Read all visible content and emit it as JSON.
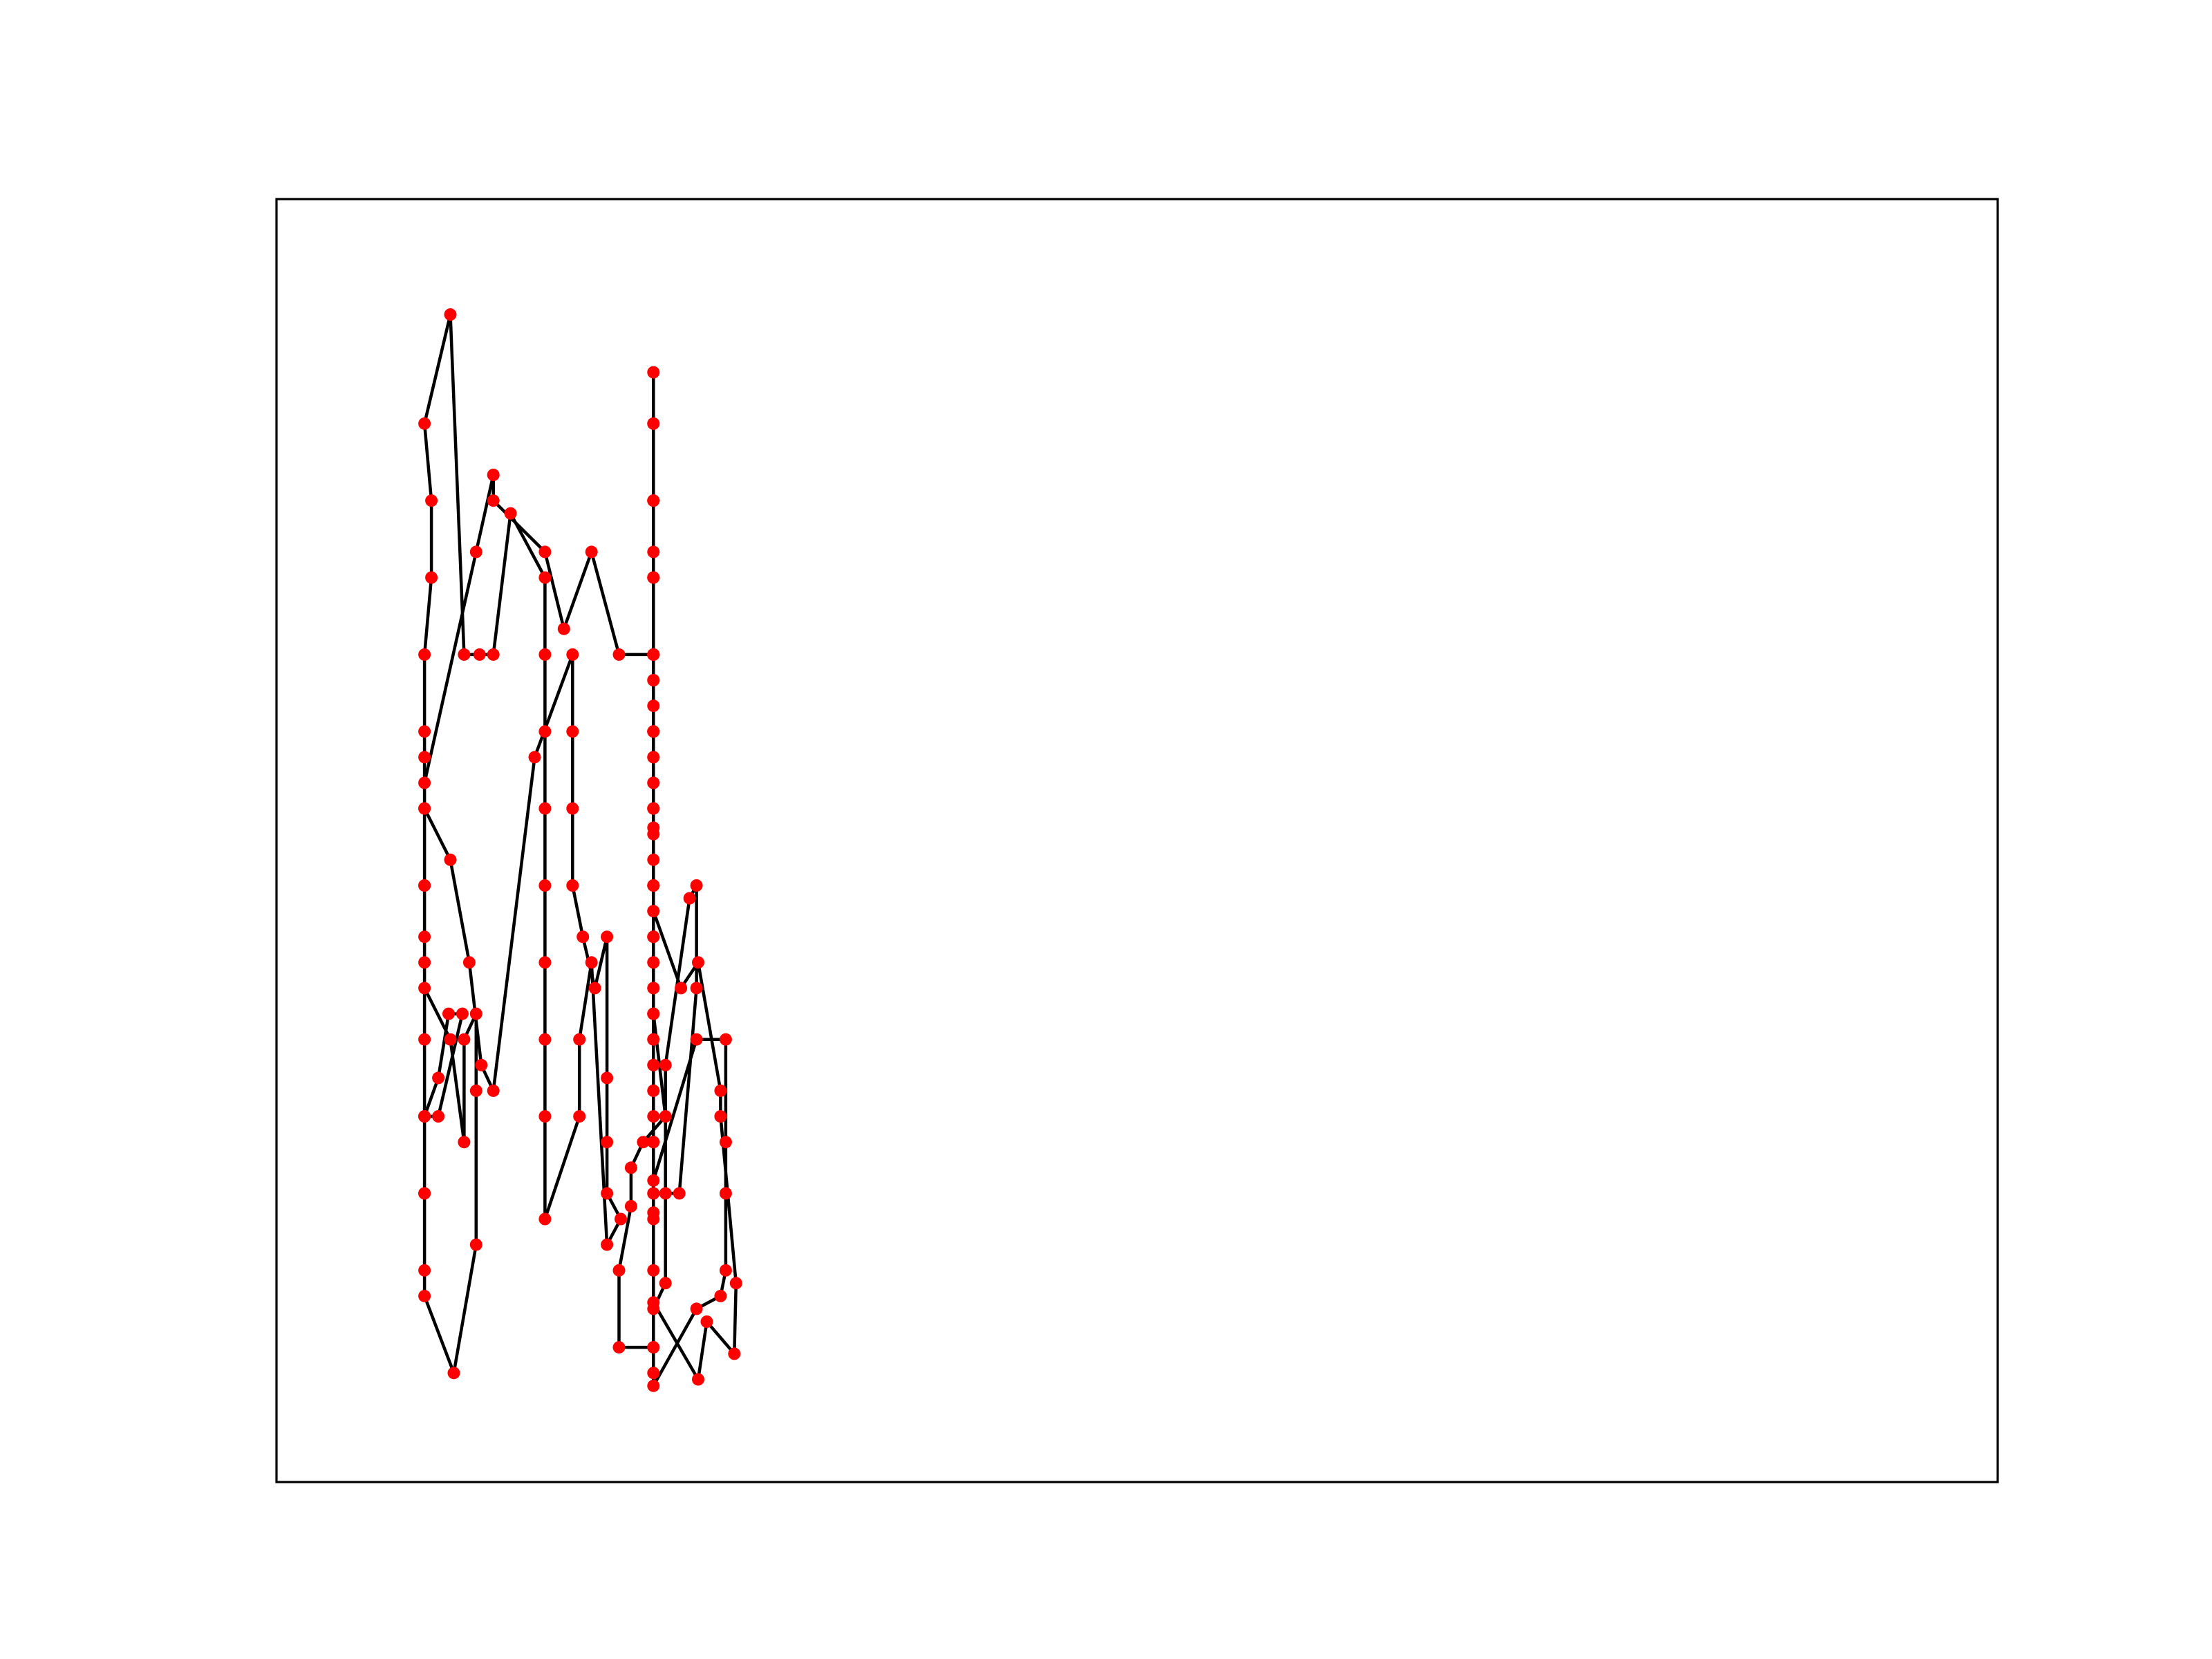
{
  "chart_data": {
    "type": "line",
    "title": "",
    "xlabel": "",
    "ylabel": "",
    "xlim": [
      0,
      1
    ],
    "ylim": [
      0,
      1
    ],
    "grid": false,
    "ticks": false,
    "legend": null,
    "line_color": "#000000",
    "marker_color": "#ff0000",
    "series": [
      {
        "points": [
          [
            0.086,
            0.165
          ],
          [
            0.086,
            0.225
          ],
          [
            0.086,
            0.285
          ],
          [
            0.086,
            0.345
          ],
          [
            0.086,
            0.405
          ],
          [
            0.086,
            0.465
          ],
          [
            0.086,
            0.525
          ],
          [
            0.086,
            0.585
          ],
          [
            0.086,
            0.645
          ],
          [
            0.09,
            0.705
          ],
          [
            0.09,
            0.765
          ],
          [
            0.086,
            0.825
          ],
          [
            0.101,
            0.91
          ],
          [
            0.109,
            0.645
          ],
          [
            0.118,
            0.645
          ],
          [
            0.126,
            0.645
          ],
          [
            0.136,
            0.755
          ],
          [
            0.156,
            0.705
          ],
          [
            0.156,
            0.645
          ],
          [
            0.156,
            0.585
          ],
          [
            0.156,
            0.525
          ],
          [
            0.156,
            0.465
          ],
          [
            0.156,
            0.405
          ],
          [
            0.156,
            0.345
          ],
          [
            0.156,
            0.285
          ],
          [
            0.156,
            0.205
          ],
          [
            0.176,
            0.285
          ],
          [
            0.176,
            0.345
          ],
          [
            0.183,
            0.405
          ],
          [
            0.192,
            0.185
          ],
          [
            0.2,
            0.205
          ],
          [
            0.192,
            0.225
          ],
          [
            0.192,
            0.265
          ],
          [
            0.192,
            0.315
          ],
          [
            0.192,
            0.425
          ],
          [
            0.185,
            0.385
          ],
          [
            0.178,
            0.425
          ],
          [
            0.172,
            0.465
          ],
          [
            0.172,
            0.525
          ],
          [
            0.172,
            0.585
          ],
          [
            0.172,
            0.645
          ],
          [
            0.15,
            0.565
          ],
          [
            0.126,
            0.305
          ],
          [
            0.119,
            0.325
          ],
          [
            0.112,
            0.405
          ],
          [
            0.101,
            0.485
          ],
          [
            0.086,
            0.525
          ],
          [
            0.086,
            0.565
          ],
          [
            0.086,
            0.285
          ],
          [
            0.094,
            0.315
          ],
          [
            0.1,
            0.365
          ],
          [
            0.108,
            0.365
          ],
          [
            0.094,
            0.285
          ],
          [
            0.086,
            0.285
          ],
          [
            0.086,
            0.225
          ],
          [
            0.086,
            0.145
          ],
          [
            0.103,
            0.085
          ],
          [
            0.116,
            0.185
          ],
          [
            0.116,
            0.305
          ],
          [
            0.116,
            0.365
          ],
          [
            0.109,
            0.345
          ],
          [
            0.109,
            0.265
          ],
          [
            0.101,
            0.345
          ],
          [
            0.086,
            0.385
          ],
          [
            0.086,
            0.425
          ],
          [
            0.086,
            0.465
          ],
          [
            0.086,
            0.545
          ],
          [
            0.116,
            0.725
          ],
          [
            0.126,
            0.785
          ],
          [
            0.126,
            0.765
          ],
          [
            0.156,
            0.725
          ],
          [
            0.167,
            0.665
          ],
          [
            0.183,
            0.725
          ],
          [
            0.199,
            0.645
          ],
          [
            0.219,
            0.645
          ],
          [
            0.219,
            0.585
          ],
          [
            0.219,
            0.565
          ],
          [
            0.219,
            0.525
          ],
          [
            0.219,
            0.465
          ],
          [
            0.219,
            0.425
          ],
          [
            0.219,
            0.385
          ],
          [
            0.219,
            0.345
          ],
          [
            0.219,
            0.305
          ],
          [
            0.219,
            0.265
          ],
          [
            0.219,
            0.205
          ],
          [
            0.219,
            0.225
          ],
          [
            0.234,
            0.225
          ],
          [
            0.244,
            0.385
          ],
          [
            0.244,
            0.465
          ],
          [
            0.24,
            0.455
          ],
          [
            0.226,
            0.325
          ],
          [
            0.226,
            0.225
          ],
          [
            0.226,
            0.155
          ],
          [
            0.219,
            0.135
          ],
          [
            0.219,
            0.085
          ],
          [
            0.219,
            0.105
          ],
          [
            0.219,
            0.165
          ],
          [
            0.219,
            0.235
          ],
          [
            0.244,
            0.345
          ],
          [
            0.261,
            0.345
          ],
          [
            0.261,
            0.265
          ],
          [
            0.261,
            0.225
          ],
          [
            0.261,
            0.165
          ],
          [
            0.258,
            0.145
          ],
          [
            0.244,
            0.135
          ],
          [
            0.219,
            0.075
          ],
          [
            0.219,
            0.105
          ],
          [
            0.199,
            0.105
          ],
          [
            0.199,
            0.165
          ],
          [
            0.206,
            0.215
          ],
          [
            0.206,
            0.245
          ],
          [
            0.213,
            0.265
          ],
          [
            0.226,
            0.285
          ],
          [
            0.219,
            0.365
          ],
          [
            0.219,
            0.425
          ],
          [
            0.219,
            0.465
          ],
          [
            0.219,
            0.525
          ],
          [
            0.219,
            0.585
          ],
          [
            0.219,
            0.625
          ],
          [
            0.219,
            0.645
          ],
          [
            0.219,
            0.705
          ],
          [
            0.219,
            0.765
          ],
          [
            0.219,
            0.825
          ],
          [
            0.219,
            0.645
          ],
          [
            0.219,
            0.565
          ],
          [
            0.219,
            0.505
          ],
          [
            0.219,
            0.445
          ],
          [
            0.235,
            0.385
          ],
          [
            0.245,
            0.405
          ],
          [
            0.258,
            0.305
          ],
          [
            0.258,
            0.285
          ],
          [
            0.267,
            0.155
          ],
          [
            0.266,
            0.1
          ],
          [
            0.25,
            0.125
          ],
          [
            0.245,
            0.08
          ],
          [
            0.219,
            0.14
          ],
          [
            0.219,
            0.21
          ],
          [
            0.219,
            0.265
          ],
          [
            0.219,
            0.305
          ],
          [
            0.219,
            0.325
          ],
          [
            0.219,
            0.365
          ],
          [
            0.219,
            0.405
          ],
          [
            0.219,
            0.465
          ],
          [
            0.219,
            0.51
          ],
          [
            0.219,
            0.545
          ],
          [
            0.219,
            0.585
          ],
          [
            0.219,
            0.625
          ],
          [
            0.219,
            0.645
          ],
          [
            0.219,
            0.705
          ],
          [
            0.219,
            0.765
          ],
          [
            0.219,
            0.825
          ],
          [
            0.219,
            0.865
          ],
          [
            0.219,
            0.765
          ],
          [
            0.219,
            0.725
          ],
          [
            0.219,
            0.705
          ],
          [
            0.219,
            0.645
          ],
          [
            0.219,
            0.605
          ],
          [
            0.219,
            0.585
          ],
          [
            0.219,
            0.545
          ],
          [
            0.219,
            0.525
          ],
          [
            0.219,
            0.485
          ],
          [
            0.219,
            0.445
          ],
          [
            0.219,
            0.425
          ],
          [
            0.219,
            0.405
          ],
          [
            0.219,
            0.385
          ],
          [
            0.219,
            0.365
          ],
          [
            0.219,
            0.345
          ],
          [
            0.219,
            0.325
          ],
          [
            0.219,
            0.285
          ],
          [
            0.219,
            0.265
          ],
          [
            0.219,
            0.225
          ]
        ]
      }
    ]
  }
}
